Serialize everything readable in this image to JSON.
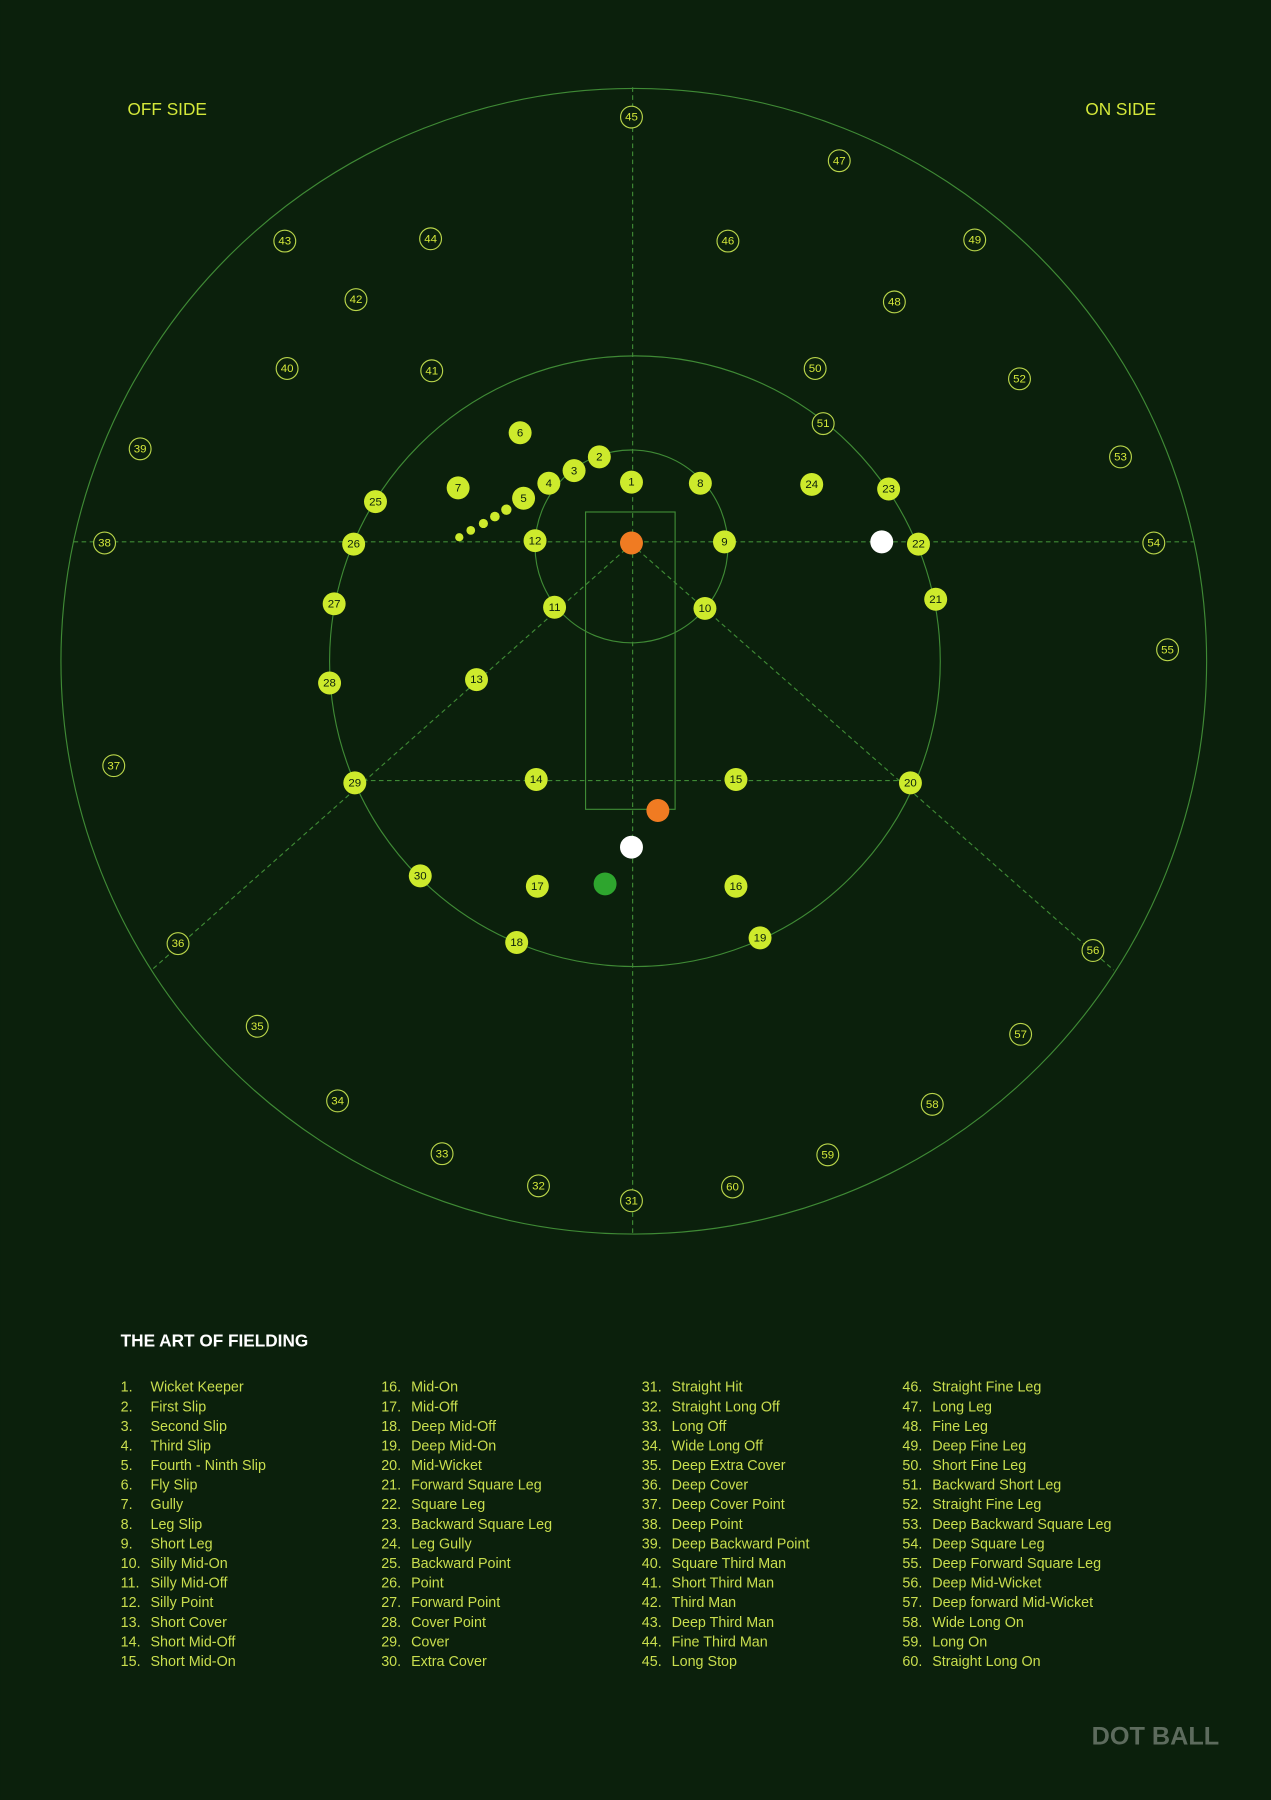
{
  "header": {
    "off_side": "OFF SIDE",
    "on_side": "ON SIDE"
  },
  "field": {
    "markers": [
      "1",
      "2",
      "3",
      "4",
      "5",
      "6",
      "7",
      "8",
      "9",
      "10",
      "11",
      "12",
      "13",
      "14",
      "15",
      "16",
      "17",
      "18",
      "19",
      "20",
      "21",
      "22",
      "23",
      "24",
      "25",
      "26",
      "27",
      "28",
      "29",
      "30",
      "31",
      "32",
      "33",
      "34",
      "35",
      "36",
      "37",
      "38",
      "39",
      "40",
      "41",
      "42",
      "43",
      "44",
      "45",
      "46",
      "47",
      "48",
      "49",
      "50",
      "51",
      "52",
      "53",
      "54",
      "55",
      "56",
      "57",
      "58",
      "59",
      "60"
    ]
  },
  "legend": {
    "title": "THE ART OF FIELDING",
    "items": [
      {
        "number": "1.",
        "name": "Wicket Keeper"
      },
      {
        "number": "2.",
        "name": "First Slip"
      },
      {
        "number": "3.",
        "name": "Second Slip"
      },
      {
        "number": "4.",
        "name": "Third Slip"
      },
      {
        "number": "5.",
        "name": "Fourth - Ninth Slip"
      },
      {
        "number": "6.",
        "name": "Fly Slip"
      },
      {
        "number": "7.",
        "name": "Gully"
      },
      {
        "number": "8.",
        "name": "Leg Slip"
      },
      {
        "number": "9.",
        "name": "Short Leg"
      },
      {
        "number": "10.",
        "name": "Silly Mid-On"
      },
      {
        "number": "11.",
        "name": "Silly Mid-Off"
      },
      {
        "number": "12.",
        "name": "Silly Point"
      },
      {
        "number": "13.",
        "name": "Short Cover"
      },
      {
        "number": "14.",
        "name": "Short Mid-Off"
      },
      {
        "number": "15.",
        "name": "Short Mid-On"
      },
      {
        "number": "16.",
        "name": "Mid-On"
      },
      {
        "number": "17.",
        "name": "Mid-Off"
      },
      {
        "number": "18.",
        "name": "Deep Mid-Off"
      },
      {
        "number": "19.",
        "name": "Deep Mid-On"
      },
      {
        "number": "20.",
        "name": "Mid-Wicket"
      },
      {
        "number": "21.",
        "name": "Forward Square Leg"
      },
      {
        "number": "22.",
        "name": "Square Leg"
      },
      {
        "number": "23.",
        "name": "Backward Square Leg"
      },
      {
        "number": "24.",
        "name": "Leg Gully"
      },
      {
        "number": "25.",
        "name": "Backward Point"
      },
      {
        "number": "26.",
        "name": "Point"
      },
      {
        "number": "27.",
        "name": "Forward Point"
      },
      {
        "number": "28.",
        "name": "Cover Point"
      },
      {
        "number": "29.",
        "name": "Cover"
      },
      {
        "number": "30.",
        "name": "Extra Cover"
      },
      {
        "number": "31.",
        "name": "Straight Hit"
      },
      {
        "number": "32.",
        "name": "Straight Long Off"
      },
      {
        "number": "33.",
        "name": "Long Off"
      },
      {
        "number": "34.",
        "name": "Wide Long Off"
      },
      {
        "number": "35.",
        "name": "Deep Extra Cover"
      },
      {
        "number": "36.",
        "name": "Deep Cover"
      },
      {
        "number": "37.",
        "name": "Deep Cover Point"
      },
      {
        "number": "38.",
        "name": "Deep Point"
      },
      {
        "number": "39.",
        "name": "Deep Backward Point"
      },
      {
        "number": "40.",
        "name": "Square Third Man"
      },
      {
        "number": "41.",
        "name": "Short Third Man"
      },
      {
        "number": "42.",
        "name": "Third Man"
      },
      {
        "number": "43.",
        "name": "Deep Third Man"
      },
      {
        "number": "44.",
        "name": "Fine Third Man"
      },
      {
        "number": "45.",
        "name": "Long Stop"
      },
      {
        "number": "46.",
        "name": "Straight Fine Leg"
      },
      {
        "number": "47.",
        "name": "Long Leg"
      },
      {
        "number": "48.",
        "name": "Fine Leg"
      },
      {
        "number": "49.",
        "name": "Deep Fine Leg"
      },
      {
        "number": "50.",
        "name": "Short Fine Leg"
      },
      {
        "number": "51.",
        "name": "Backward Short Leg"
      },
      {
        "number": "52.",
        "name": "Straight Fine Leg"
      },
      {
        "number": "53.",
        "name": "Deep Backward Square Leg"
      },
      {
        "number": "54.",
        "name": "Deep Square Leg"
      },
      {
        "number": "55.",
        "name": "Deep Forward Square Leg"
      },
      {
        "number": "56.",
        "name": "Deep Mid-Wicket"
      },
      {
        "number": "57.",
        "name": "Deep forward Mid-Wicket"
      },
      {
        "number": "58.",
        "name": "Wide Long On"
      },
      {
        "number": "59.",
        "name": "Long On"
      },
      {
        "number": "60.",
        "name": "Straight Long On"
      }
    ]
  },
  "brand": "DOT BALL"
}
